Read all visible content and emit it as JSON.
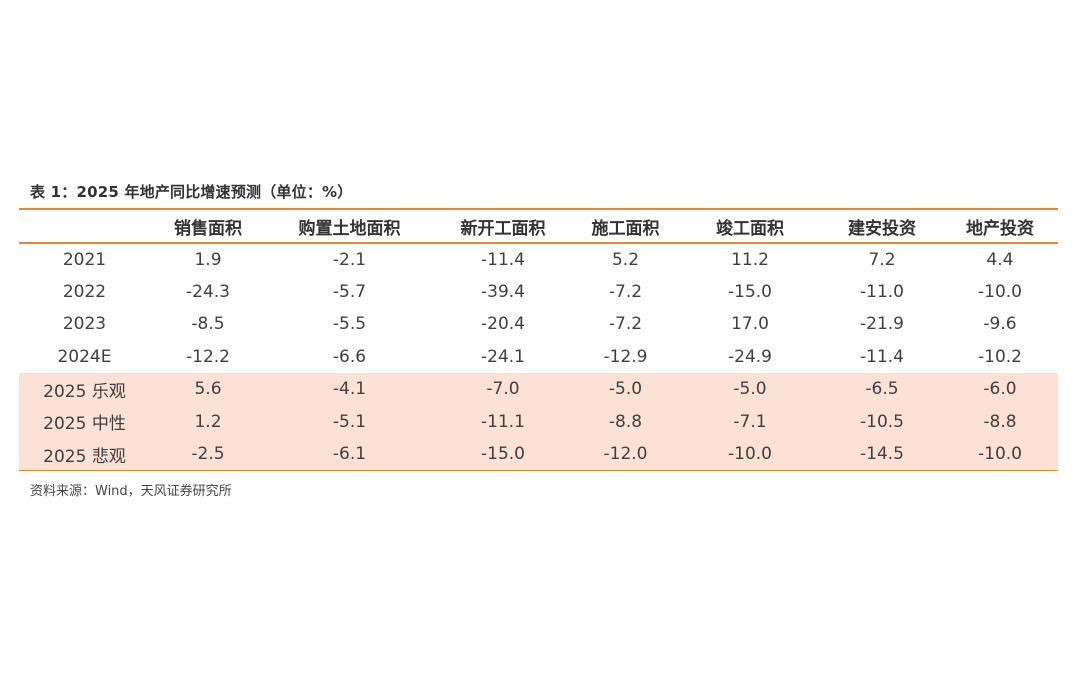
{
  "title": "表 1：2025 年地产同比增速预测（单位：%）",
  "columns": [
    "",
    "销售面积",
    "购置土地面积",
    "新开工面积",
    "施工面积",
    "竣工面积",
    "建安投资",
    "地产投资"
  ],
  "rows": [
    {
      "label": "2021",
      "values": [
        "1.9",
        "-2.1",
        "-11.4",
        "5.2",
        "11.2",
        "7.2",
        "4.4"
      ]
    },
    {
      "label": "2022",
      "values": [
        "-24.3",
        "-5.7",
        "-39.4",
        "-7.2",
        "-15.0",
        "-11.0",
        "-10.0"
      ]
    },
    {
      "label": "2023",
      "values": [
        "-8.5",
        "-5.5",
        "-20.4",
        "-7.2",
        "17.0",
        "-21.9",
        "-9.6"
      ]
    },
    {
      "label": "2024E",
      "values": [
        "-12.2",
        "-6.6",
        "-24.1",
        "-12.9",
        "-24.9",
        "-11.4",
        "-10.2"
      ]
    },
    {
      "label": "2025 乐观",
      "values": [
        "5.6",
        "-4.1",
        "-7.0",
        "-5.0",
        "-5.0",
        "-6.5",
        "-6.0"
      ]
    },
    {
      "label": "2025 中性",
      "values": [
        "1.2",
        "-5.1",
        "-11.1",
        "-8.8",
        "-7.1",
        "-10.5",
        "-8.8"
      ]
    },
    {
      "label": "2025 悲观",
      "values": [
        "-2.5",
        "-6.1",
        "-15.0",
        "-12.0",
        "-10.0",
        "-14.5",
        "-10.0"
      ]
    }
  ],
  "source": "资料来源：Wind，天风证券研究所",
  "colors": {
    "rule": "#e8872e",
    "scenario_fill": "#fce2d5"
  }
}
